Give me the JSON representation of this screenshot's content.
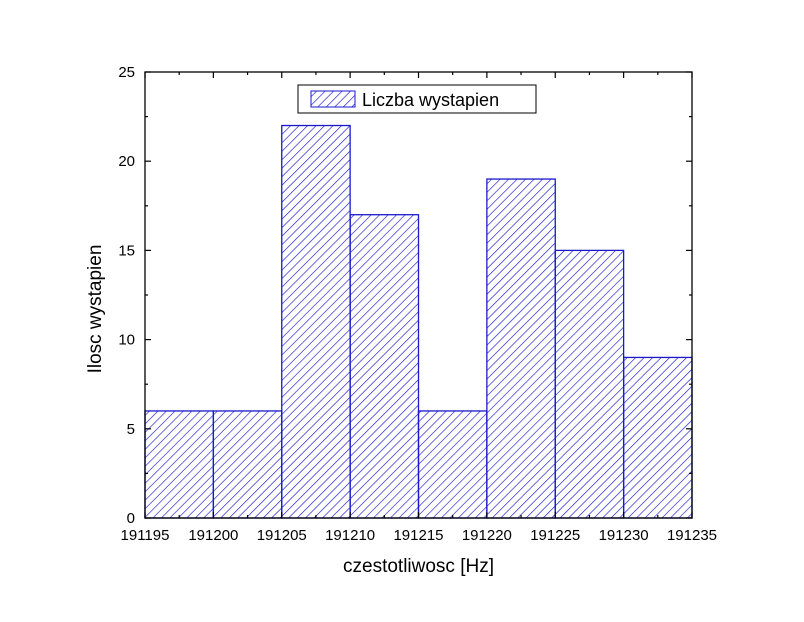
{
  "chart_data": {
    "type": "bar",
    "bin_edges": [
      191195,
      191200,
      191205,
      191210,
      191215,
      191220,
      191225,
      191230,
      191235
    ],
    "values": [
      6,
      6,
      22,
      17,
      6,
      19,
      15,
      9
    ],
    "xlabel": "czestotliwosc [Hz]",
    "ylabel": "Ilosc  wystapien",
    "xlim": [
      191195,
      191235
    ],
    "ylim": [
      0,
      25
    ],
    "x_ticks": [
      191195,
      191200,
      191205,
      191210,
      191215,
      191220,
      191225,
      191230,
      191235
    ],
    "y_ticks": [
      0,
      5,
      10,
      15,
      20,
      25
    ],
    "series": [
      {
        "name": "Liczba wystapien",
        "values": [
          6,
          6,
          22,
          17,
          6,
          19,
          15,
          9
        ]
      }
    ],
    "legend_position": "top-center",
    "grid": false,
    "colors": {
      "bar_stroke": "#1a1acc",
      "hatch": "#1a1acc",
      "axis": "#000000"
    }
  }
}
